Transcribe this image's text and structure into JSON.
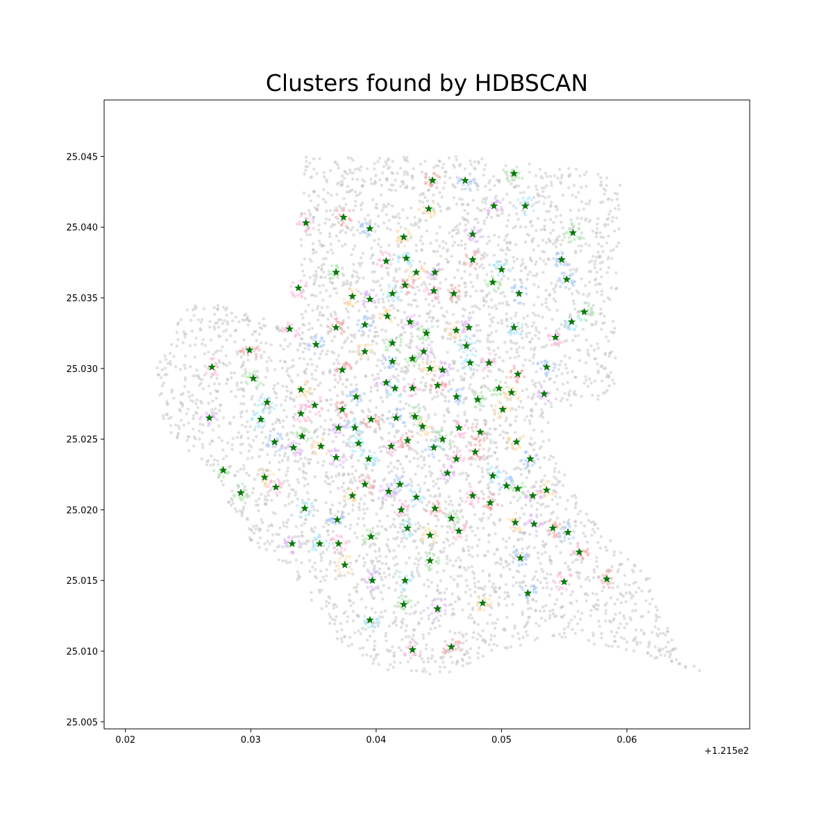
{
  "chart_data": {
    "type": "scatter",
    "title": "Clusters found by HDBSCAN",
    "xlabel": "",
    "ylabel": "",
    "x_offset_label": "+1.215e2",
    "x_offset": 121.5,
    "xlim": [
      0.0183,
      0.0698
    ],
    "ylim": [
      25.0045,
      25.049
    ],
    "x_ticks": [
      0.02,
      0.03,
      0.04,
      0.05,
      0.06
    ],
    "x_tick_labels": [
      "0.02",
      "0.03",
      "0.04",
      "0.05",
      "0.06"
    ],
    "y_ticks": [
      25.005,
      25.01,
      25.015,
      25.02,
      25.025,
      25.03,
      25.035,
      25.04,
      25.045
    ],
    "y_tick_labels": [
      "25.005",
      "25.010",
      "25.015",
      "25.020",
      "25.025",
      "25.030",
      "25.035",
      "25.040",
      "25.045"
    ],
    "grid": false,
    "legend": "none",
    "noise_color": "#bbbbbb",
    "cluster_colors": [
      "#f4a0a0",
      "#a0c4ff",
      "#a8e6a8",
      "#ffd8a0",
      "#e0b0ff",
      "#a0e8ff",
      "#ffb3d9"
    ],
    "centroid_color": "#008000",
    "region_polygon": [
      [
        0.0225,
        25.03
      ],
      [
        0.0245,
        25.034
      ],
      [
        0.026,
        25.035
      ],
      [
        0.029,
        25.034
      ],
      [
        0.0335,
        25.033
      ],
      [
        0.034,
        25.034
      ],
      [
        0.034,
        25.045
      ],
      [
        0.0475,
        25.045
      ],
      [
        0.0575,
        25.044
      ],
      [
        0.0595,
        25.043
      ],
      [
        0.059,
        25.028
      ],
      [
        0.0535,
        25.027
      ],
      [
        0.0545,
        25.024
      ],
      [
        0.056,
        25.021
      ],
      [
        0.0575,
        25.019
      ],
      [
        0.062,
        25.015
      ],
      [
        0.064,
        25.01
      ],
      [
        0.066,
        25.0085
      ],
      [
        0.06,
        25.01
      ],
      [
        0.054,
        25.011
      ],
      [
        0.05,
        25.01
      ],
      [
        0.046,
        25.0085
      ],
      [
        0.043,
        25.008
      ],
      [
        0.041,
        25.0085
      ],
      [
        0.037,
        25.0105
      ],
      [
        0.0355,
        25.0125
      ],
      [
        0.033,
        25.016
      ],
      [
        0.03,
        25.0175
      ],
      [
        0.0285,
        25.02
      ],
      [
        0.027,
        25.0225
      ],
      [
        0.025,
        25.024
      ],
      [
        0.023,
        25.026
      ]
    ],
    "centroids": [
      [
        0.0445,
        25.0433
      ],
      [
        0.0471,
        25.0433
      ],
      [
        0.051,
        25.0438
      ],
      [
        0.0442,
        25.0413
      ],
      [
        0.0494,
        25.0415
      ],
      [
        0.0519,
        25.0415
      ],
      [
        0.0344,
        25.0403
      ],
      [
        0.0374,
        25.0407
      ],
      [
        0.0395,
        25.0399
      ],
      [
        0.0557,
        25.0396
      ],
      [
        0.0422,
        25.0393
      ],
      [
        0.0477,
        25.0395
      ],
      [
        0.0424,
        25.0378
      ],
      [
        0.0408,
        25.0376
      ],
      [
        0.0477,
        25.0377
      ],
      [
        0.0548,
        25.0377
      ],
      [
        0.0368,
        25.0368
      ],
      [
        0.0432,
        25.0368
      ],
      [
        0.0447,
        25.0368
      ],
      [
        0.05,
        25.037
      ],
      [
        0.0338,
        25.0357
      ],
      [
        0.0423,
        25.0359
      ],
      [
        0.0552,
        25.0363
      ],
      [
        0.0493,
        25.0361
      ],
      [
        0.0381,
        25.0351
      ],
      [
        0.0395,
        25.0349
      ],
      [
        0.0413,
        25.0353
      ],
      [
        0.0446,
        25.0355
      ],
      [
        0.0462,
        25.0353
      ],
      [
        0.0514,
        25.0353
      ],
      [
        0.0566,
        25.034
      ],
      [
        0.0409,
        25.0337
      ],
      [
        0.0427,
        25.0333
      ],
      [
        0.0556,
        25.0333
      ],
      [
        0.0331,
        25.0328
      ],
      [
        0.0368,
        25.0329
      ],
      [
        0.0391,
        25.0331
      ],
      [
        0.044,
        25.0325
      ],
      [
        0.0464,
        25.0327
      ],
      [
        0.0474,
        25.0329
      ],
      [
        0.051,
        25.0329
      ],
      [
        0.0543,
        25.0322
      ],
      [
        0.0299,
        25.0313
      ],
      [
        0.0352,
        25.0317
      ],
      [
        0.0413,
        25.0318
      ],
      [
        0.0391,
        25.0312
      ],
      [
        0.0438,
        25.0312
      ],
      [
        0.0472,
        25.0316
      ],
      [
        0.0269,
        25.0301
      ],
      [
        0.0373,
        25.0299
      ],
      [
        0.0413,
        25.0305
      ],
      [
        0.0429,
        25.0307
      ],
      [
        0.0443,
        25.03
      ],
      [
        0.0453,
        25.0299
      ],
      [
        0.0475,
        25.0304
      ],
      [
        0.049,
        25.0304
      ],
      [
        0.0513,
        25.0296
      ],
      [
        0.0536,
        25.0301
      ],
      [
        0.0302,
        25.0293
      ],
      [
        0.034,
        25.0285
      ],
      [
        0.0408,
        25.029
      ],
      [
        0.0415,
        25.0286
      ],
      [
        0.0429,
        25.0286
      ],
      [
        0.0449,
        25.0288
      ],
      [
        0.0464,
        25.028
      ],
      [
        0.0498,
        25.0286
      ],
      [
        0.0508,
        25.0283
      ],
      [
        0.0534,
        25.0282
      ],
      [
        0.0313,
        25.0276
      ],
      [
        0.0351,
        25.0274
      ],
      [
        0.0373,
        25.0271
      ],
      [
        0.0384,
        25.028
      ],
      [
        0.0481,
        25.0278
      ],
      [
        0.0501,
        25.0271
      ],
      [
        0.0267,
        25.0265
      ],
      [
        0.0308,
        25.0264
      ],
      [
        0.034,
        25.0268
      ],
      [
        0.0396,
        25.0264
      ],
      [
        0.0416,
        25.0265
      ],
      [
        0.0431,
        25.0266
      ],
      [
        0.0437,
        25.0259
      ],
      [
        0.037,
        25.0258
      ],
      [
        0.0383,
        25.0258
      ],
      [
        0.0466,
        25.0258
      ],
      [
        0.0483,
        25.0255
      ],
      [
        0.0319,
        25.0248
      ],
      [
        0.0341,
        25.0252
      ],
      [
        0.0356,
        25.0245
      ],
      [
        0.0334,
        25.0244
      ],
      [
        0.0386,
        25.0247
      ],
      [
        0.0412,
        25.0245
      ],
      [
        0.0425,
        25.0249
      ],
      [
        0.0446,
        25.0244
      ],
      [
        0.0453,
        25.025
      ],
      [
        0.0512,
        25.0248
      ],
      [
        0.0368,
        25.0237
      ],
      [
        0.0394,
        25.0236
      ],
      [
        0.0464,
        25.0236
      ],
      [
        0.0479,
        25.0241
      ],
      [
        0.0523,
        25.0236
      ],
      [
        0.0278,
        25.0228
      ],
      [
        0.0311,
        25.0223
      ],
      [
        0.0457,
        25.0226
      ],
      [
        0.0493,
        25.0224
      ],
      [
        0.032,
        25.0216
      ],
      [
        0.0391,
        25.0218
      ],
      [
        0.0419,
        25.0218
      ],
      [
        0.0292,
        25.0212
      ],
      [
        0.0381,
        25.021
      ],
      [
        0.041,
        25.0213
      ],
      [
        0.0432,
        25.0209
      ],
      [
        0.0477,
        25.021
      ],
      [
        0.0491,
        25.0205
      ],
      [
        0.0504,
        25.0217
      ],
      [
        0.0513,
        25.0215
      ],
      [
        0.0536,
        25.0214
      ],
      [
        0.0525,
        25.021
      ],
      [
        0.0343,
        25.0201
      ],
      [
        0.042,
        25.02
      ],
      [
        0.0447,
        25.0201
      ],
      [
        0.0369,
        25.0193
      ],
      [
        0.046,
        25.0194
      ],
      [
        0.0511,
        25.0191
      ],
      [
        0.0526,
        25.019
      ],
      [
        0.0425,
        25.0187
      ],
      [
        0.0466,
        25.0185
      ],
      [
        0.0541,
        25.0187
      ],
      [
        0.0553,
        25.0184
      ],
      [
        0.0396,
        25.0181
      ],
      [
        0.0443,
        25.0182
      ],
      [
        0.0333,
        25.0176
      ],
      [
        0.0355,
        25.0176
      ],
      [
        0.037,
        25.0176
      ],
      [
        0.0562,
        25.017
      ],
      [
        0.0515,
        25.0166
      ],
      [
        0.0443,
        25.0164
      ],
      [
        0.0375,
        25.0161
      ],
      [
        0.0397,
        25.015
      ],
      [
        0.0423,
        25.015
      ],
      [
        0.055,
        25.0149
      ],
      [
        0.0584,
        25.0151
      ],
      [
        0.0521,
        25.0141
      ],
      [
        0.0422,
        25.0133
      ],
      [
        0.0485,
        25.0134
      ],
      [
        0.0449,
        25.013
      ],
      [
        0.0395,
        25.0122
      ],
      [
        0.0429,
        25.0101
      ],
      [
        0.046,
        25.0103
      ]
    ]
  }
}
